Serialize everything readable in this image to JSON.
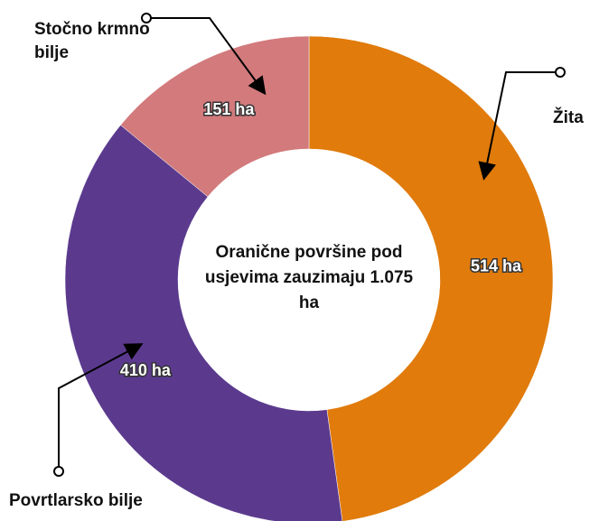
{
  "chart_data": {
    "type": "donut",
    "categories": [
      "Žita",
      "Povrtlarsko bilje",
      "Stočno krmno bilje"
    ],
    "values": [
      514,
      410,
      151
    ],
    "value_labels": [
      "514 ha",
      "410 ha",
      "151 ha"
    ],
    "colors": [
      "#e07b0c",
      "#5b3a8e",
      "#d27a7c"
    ],
    "center_text": "Oranične površine pod usjevima zauzimaju 1.075 ha"
  }
}
